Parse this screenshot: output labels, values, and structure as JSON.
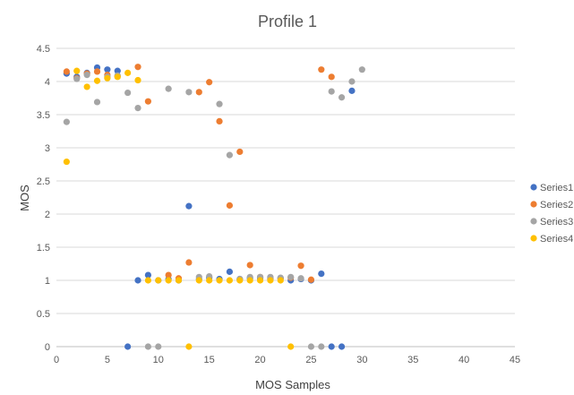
{
  "chart_data": {
    "type": "scatter",
    "title": "Profile 1",
    "xlabel": "MOS Samples",
    "ylabel": "MOS",
    "xlim": [
      0,
      45
    ],
    "ylim": [
      0,
      4.5
    ],
    "xticks": [
      0,
      5,
      10,
      15,
      20,
      25,
      30,
      35,
      40,
      45
    ],
    "yticks": [
      0,
      0.5,
      1,
      1.5,
      2,
      2.5,
      3,
      3.5,
      4,
      4.5
    ],
    "xtick_labels": [
      "0",
      "5",
      "10",
      "15",
      "20",
      "25",
      "30",
      "35",
      "40",
      "45"
    ],
    "ytick_labels": [
      "0",
      "0.5",
      "1",
      "1.5",
      "2",
      "2.5",
      "3",
      "3.5",
      "4",
      "4.5"
    ],
    "grid": "horizontal",
    "legend_position": "right",
    "series": [
      {
        "name": "Series1",
        "color": "#4472C4",
        "points": [
          [
            1,
            4.12
          ],
          [
            2,
            4.07
          ],
          [
            3,
            4.13
          ],
          [
            4,
            4.21
          ],
          [
            5,
            4.18
          ],
          [
            6,
            4.16
          ],
          [
            7,
            0.0
          ],
          [
            8,
            1.0
          ],
          [
            9,
            1.08
          ],
          [
            10,
            1.0
          ],
          [
            11,
            1.02
          ],
          [
            12,
            1.0
          ],
          [
            13,
            2.12
          ],
          [
            14,
            1.02
          ],
          [
            15,
            1.04
          ],
          [
            16,
            1.02
          ],
          [
            17,
            1.13
          ],
          [
            18,
            1.02
          ],
          [
            19,
            1.03
          ],
          [
            20,
            1.03
          ],
          [
            21,
            1.02
          ],
          [
            22,
            1.03
          ],
          [
            23,
            1.0
          ],
          [
            24,
            1.02
          ],
          [
            25,
            1.0
          ],
          [
            26,
            1.1
          ],
          [
            27,
            0.0
          ],
          [
            28,
            0.0
          ],
          [
            29,
            3.86
          ]
        ]
      },
      {
        "name": "Series2",
        "color": "#ED7D31",
        "points": [
          [
            1,
            4.15
          ],
          [
            2,
            4.05
          ],
          [
            3,
            4.12
          ],
          [
            4,
            4.15
          ],
          [
            5,
            4.1
          ],
          [
            6,
            4.08
          ],
          [
            8,
            4.22
          ],
          [
            9,
            3.7
          ],
          [
            11,
            1.08
          ],
          [
            12,
            1.03
          ],
          [
            13,
            1.27
          ],
          [
            14,
            3.84
          ],
          [
            15,
            3.99
          ],
          [
            16,
            3.4
          ],
          [
            17,
            2.13
          ],
          [
            18,
            2.94
          ],
          [
            19,
            1.23
          ],
          [
            20,
            1.05
          ],
          [
            21,
            1.04
          ],
          [
            22,
            1.03
          ],
          [
            23,
            1.04
          ],
          [
            24,
            1.22
          ],
          [
            25,
            1.01
          ],
          [
            26,
            4.18
          ],
          [
            27,
            4.07
          ]
        ]
      },
      {
        "name": "Series3",
        "color": "#A5A5A5",
        "points": [
          [
            1,
            3.39
          ],
          [
            2,
            4.04
          ],
          [
            3,
            4.1
          ],
          [
            4,
            3.69
          ],
          [
            5,
            4.07
          ],
          [
            6,
            4.09
          ],
          [
            7,
            3.83
          ],
          [
            8,
            3.6
          ],
          [
            9,
            0.0
          ],
          [
            10,
            0.0
          ],
          [
            11,
            3.89
          ],
          [
            13,
            3.84
          ],
          [
            14,
            1.05
          ],
          [
            15,
            1.06
          ],
          [
            16,
            3.66
          ],
          [
            17,
            2.89
          ],
          [
            18,
            1.02
          ],
          [
            19,
            1.05
          ],
          [
            20,
            1.05
          ],
          [
            21,
            1.05
          ],
          [
            22,
            1.04
          ],
          [
            23,
            1.05
          ],
          [
            24,
            1.03
          ],
          [
            25,
            0.0
          ],
          [
            26,
            0.0
          ],
          [
            27,
            3.85
          ],
          [
            28,
            3.76
          ],
          [
            29,
            4.0
          ],
          [
            30,
            4.18
          ]
        ]
      },
      {
        "name": "Series4",
        "color": "#FFC000",
        "points": [
          [
            1,
            2.79
          ],
          [
            2,
            4.16
          ],
          [
            3,
            3.92
          ],
          [
            4,
            4.01
          ],
          [
            5,
            4.05
          ],
          [
            6,
            4.07
          ],
          [
            7,
            4.13
          ],
          [
            8,
            4.02
          ],
          [
            9,
            1.0
          ],
          [
            10,
            1.0
          ],
          [
            11,
            1.0
          ],
          [
            12,
            1.0
          ],
          [
            13,
            0.0
          ],
          [
            14,
            1.0
          ],
          [
            15,
            1.0
          ],
          [
            16,
            1.0
          ],
          [
            17,
            1.0
          ],
          [
            18,
            1.0
          ],
          [
            19,
            1.0
          ],
          [
            20,
            1.0
          ],
          [
            21,
            1.0
          ],
          [
            22,
            1.0
          ],
          [
            23,
            0.0
          ]
        ]
      }
    ]
  }
}
